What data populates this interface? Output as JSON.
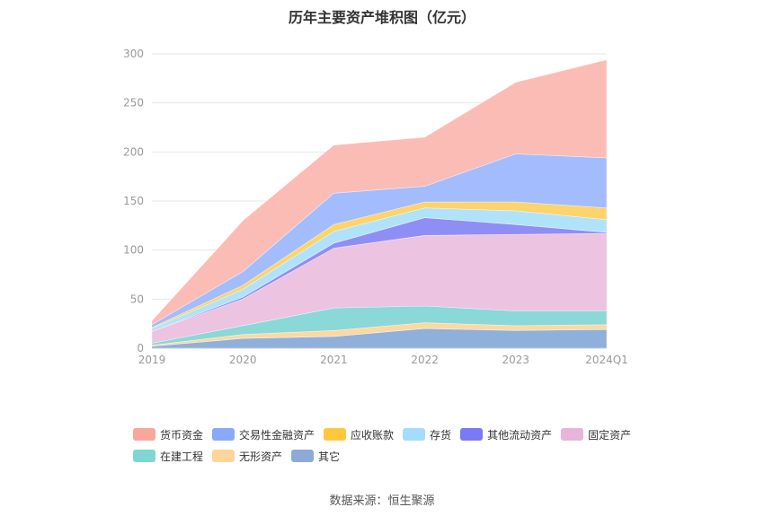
{
  "chart_data": {
    "type": "area",
    "stacked": true,
    "title": "历年主要资产堆积图（亿元）",
    "categories": [
      "2019",
      "2020",
      "2021",
      "2022",
      "2023",
      "2024Q1"
    ],
    "ylim": [
      0,
      300
    ],
    "yticks": [
      0,
      50,
      100,
      150,
      200,
      250,
      300
    ],
    "grid": true,
    "legend_position": "bottom",
    "series": [
      {
        "name": "其它",
        "color": "#8fb0da",
        "values": [
          2,
          10,
          12,
          20,
          18,
          19
        ]
      },
      {
        "name": "无形资产",
        "color": "#fdd9a0",
        "values": [
          1,
          4,
          6,
          6,
          5,
          5
        ]
      },
      {
        "name": "在建工程",
        "color": "#8ad8d8",
        "values": [
          2,
          9,
          23,
          17,
          15,
          14
        ]
      },
      {
        "name": "固定资产",
        "color": "#ecc3e0",
        "values": [
          12,
          27,
          61,
          72,
          78,
          79
        ]
      },
      {
        "name": "其他流动资产",
        "color": "#8f8ef5",
        "values": [
          0,
          2,
          5,
          18,
          10,
          1
        ]
      },
      {
        "name": "存货",
        "color": "#b0e3fa",
        "values": [
          3,
          8,
          12,
          10,
          14,
          13
        ]
      },
      {
        "name": "应收账款",
        "color": "#fdd36b",
        "values": [
          1,
          4,
          7,
          6,
          9,
          12
        ]
      },
      {
        "name": "交易性金融资产",
        "color": "#a3bcfd",
        "values": [
          3,
          14,
          32,
          16,
          49,
          51
        ]
      },
      {
        "name": "货币资金",
        "color": "#fbbcb5",
        "values": [
          4,
          52,
          49,
          50,
          73,
          100
        ]
      }
    ]
  },
  "legend": {
    "rows": [
      [
        {
          "label": "货币资金",
          "color": "#f8a79d"
        },
        {
          "label": "交易性金融资产",
          "color": "#8aa9fb"
        },
        {
          "label": "应收账款",
          "color": "#fdc83d"
        },
        {
          "label": "存货",
          "color": "#a3ddfb"
        },
        {
          "label": "其他流动资产",
          "color": "#7b79f3"
        },
        {
          "label": "固定资产",
          "color": "#e7b5d9"
        }
      ],
      [
        {
          "label": "在建工程",
          "color": "#7fd6d4"
        },
        {
          "label": "无形资产",
          "color": "#fdd59a"
        },
        {
          "label": "其它",
          "color": "#8eabd8"
        }
      ]
    ]
  },
  "source": "数据来源：恒生聚源"
}
